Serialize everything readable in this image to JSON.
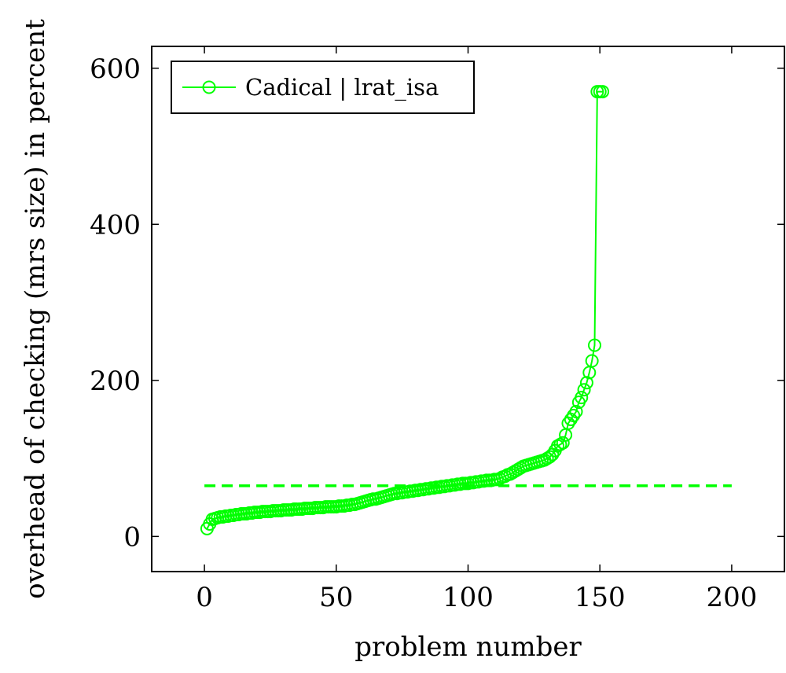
{
  "chart_data": {
    "type": "line",
    "title": "",
    "xlabel": "problem number",
    "ylabel": "overhead of checking (mrs size) in percent",
    "xlim": [
      -20,
      220
    ],
    "ylim": [
      -45,
      628
    ],
    "xticks": [
      0,
      50,
      100,
      150,
      200
    ],
    "yticks": [
      0,
      200,
      400,
      600
    ],
    "grid": false,
    "legend_position": "top-left",
    "series": [
      {
        "name": "Cadical | lrat_isa",
        "color": "#00ff00",
        "marker": "circle-open",
        "x": [
          1,
          2,
          3,
          4,
          5,
          6,
          7,
          8,
          9,
          10,
          11,
          12,
          13,
          14,
          15,
          16,
          17,
          18,
          19,
          20,
          21,
          22,
          23,
          24,
          25,
          26,
          27,
          28,
          29,
          30,
          31,
          32,
          33,
          34,
          35,
          36,
          37,
          38,
          39,
          40,
          41,
          42,
          43,
          44,
          45,
          46,
          47,
          48,
          49,
          50,
          51,
          52,
          53,
          54,
          55,
          56,
          57,
          58,
          59,
          60,
          61,
          62,
          63,
          64,
          65,
          66,
          67,
          68,
          69,
          70,
          71,
          72,
          73,
          74,
          75,
          76,
          77,
          78,
          79,
          80,
          81,
          82,
          83,
          84,
          85,
          86,
          87,
          88,
          89,
          90,
          91,
          92,
          93,
          94,
          95,
          96,
          97,
          98,
          99,
          100,
          101,
          102,
          103,
          104,
          105,
          106,
          107,
          108,
          109,
          110,
          111,
          112,
          113,
          114,
          115,
          116,
          117,
          118,
          119,
          120,
          121,
          122,
          123,
          124,
          125,
          126,
          127,
          128,
          129,
          130,
          131,
          132,
          133,
          134,
          135,
          136,
          137,
          138,
          139,
          140,
          141,
          142,
          143,
          144,
          145,
          146,
          147,
          148,
          149,
          150,
          151
        ],
        "y": [
          10,
          16,
          22,
          23,
          24,
          25,
          25,
          26,
          26,
          27,
          27,
          28,
          28,
          29,
          29,
          29,
          30,
          30,
          31,
          31,
          31,
          32,
          32,
          32,
          32,
          33,
          33,
          33,
          33,
          34,
          34,
          34,
          34,
          35,
          35,
          35,
          35,
          36,
          36,
          36,
          36,
          37,
          37,
          37,
          37,
          38,
          38,
          38,
          38,
          38,
          39,
          39,
          39,
          40,
          40,
          41,
          41,
          42,
          43,
          44,
          45,
          46,
          47,
          48,
          48,
          49,
          50,
          51,
          52,
          53,
          54,
          55,
          55,
          56,
          56,
          57,
          57,
          58,
          58,
          59,
          59,
          60,
          60,
          61,
          61,
          62,
          62,
          63,
          63,
          64,
          64,
          65,
          65,
          66,
          66,
          67,
          67,
          68,
          68,
          68,
          69,
          69,
          70,
          70,
          71,
          71,
          72,
          72,
          72,
          73,
          73,
          74,
          76,
          77,
          79,
          80,
          82,
          84,
          86,
          88,
          90,
          91,
          92,
          93,
          94,
          95,
          96,
          97,
          98,
          100,
          102,
          105,
          110,
          116,
          118,
          120,
          130,
          145,
          150,
          155,
          160,
          172,
          178,
          188,
          197,
          210,
          225,
          245,
          570,
          570,
          570
        ]
      },
      {
        "name": "",
        "color": "#00ff00",
        "style": "dashed",
        "x": [
          0,
          200
        ],
        "y": [
          65,
          65
        ]
      }
    ]
  }
}
